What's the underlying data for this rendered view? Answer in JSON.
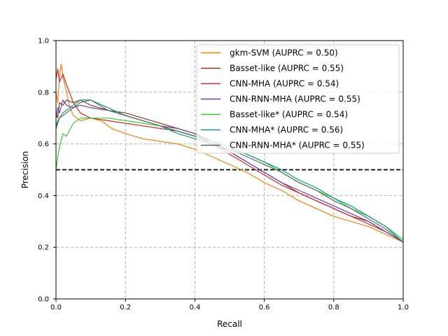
{
  "chart_data": {
    "type": "line",
    "title": "",
    "xlabel": "Recall",
    "ylabel": "Precision",
    "xlim": [
      0,
      1
    ],
    "ylim": [
      0,
      1
    ],
    "xticks": [
      "0.0",
      "0.2",
      "0.4",
      "0.6",
      "0.8",
      "1.0"
    ],
    "yticks": [
      "0.0",
      "0.2",
      "0.4",
      "0.6",
      "0.8",
      "1.0"
    ],
    "grid": true,
    "legend_position": "top-right",
    "baseline": {
      "y": 0.5,
      "style": "dashed",
      "color": "#000000"
    },
    "series": [
      {
        "name": "gkm-SVM (AUPRC = 0.50)",
        "color": "#ff7f0e",
        "points": [
          [
            0,
            0.8
          ],
          [
            0.005,
            0.76
          ],
          [
            0.01,
            0.86
          ],
          [
            0.015,
            0.91
          ],
          [
            0.02,
            0.86
          ],
          [
            0.03,
            0.8
          ],
          [
            0.04,
            0.74
          ],
          [
            0.05,
            0.71
          ],
          [
            0.07,
            0.69
          ],
          [
            0.1,
            0.7
          ],
          [
            0.13,
            0.69
          ],
          [
            0.16,
            0.66
          ],
          [
            0.2,
            0.64
          ],
          [
            0.25,
            0.62
          ],
          [
            0.3,
            0.61
          ],
          [
            0.35,
            0.6
          ],
          [
            0.4,
            0.58
          ],
          [
            0.45,
            0.55
          ],
          [
            0.5,
            0.52
          ],
          [
            0.55,
            0.49
          ],
          [
            0.6,
            0.45
          ],
          [
            0.65,
            0.42
          ],
          [
            0.7,
            0.38
          ],
          [
            0.75,
            0.35
          ],
          [
            0.8,
            0.32
          ],
          [
            0.85,
            0.3
          ],
          [
            0.9,
            0.28
          ],
          [
            0.95,
            0.25
          ],
          [
            1.0,
            0.22
          ]
        ]
      },
      {
        "name": "Basset-like (AUPRC = 0.55)",
        "color": "#8c3a1e",
        "points": [
          [
            0,
            0.72
          ],
          [
            0.005,
            0.7
          ],
          [
            0.01,
            0.76
          ],
          [
            0.02,
            0.75
          ],
          [
            0.03,
            0.77
          ],
          [
            0.05,
            0.76
          ],
          [
            0.07,
            0.77
          ],
          [
            0.1,
            0.75
          ],
          [
            0.15,
            0.73
          ],
          [
            0.2,
            0.72
          ],
          [
            0.25,
            0.7
          ],
          [
            0.3,
            0.68
          ],
          [
            0.35,
            0.66
          ],
          [
            0.4,
            0.64
          ],
          [
            0.45,
            0.61
          ],
          [
            0.5,
            0.57
          ],
          [
            0.55,
            0.53
          ],
          [
            0.6,
            0.49
          ],
          [
            0.65,
            0.45
          ],
          [
            0.7,
            0.41
          ],
          [
            0.75,
            0.38
          ],
          [
            0.8,
            0.35
          ],
          [
            0.85,
            0.32
          ],
          [
            0.9,
            0.3
          ],
          [
            0.95,
            0.26
          ],
          [
            1.0,
            0.22
          ]
        ]
      },
      {
        "name": "CNN-MHA (AUPRC = 0.54)",
        "color": "#d62728",
        "points": [
          [
            0,
            0.85
          ],
          [
            0.005,
            0.89
          ],
          [
            0.01,
            0.84
          ],
          [
            0.02,
            0.87
          ],
          [
            0.03,
            0.83
          ],
          [
            0.05,
            0.76
          ],
          [
            0.07,
            0.72
          ],
          [
            0.1,
            0.7
          ],
          [
            0.15,
            0.69
          ],
          [
            0.2,
            0.68
          ],
          [
            0.25,
            0.67
          ],
          [
            0.3,
            0.66
          ],
          [
            0.35,
            0.65
          ],
          [
            0.4,
            0.63
          ],
          [
            0.45,
            0.6
          ],
          [
            0.5,
            0.56
          ],
          [
            0.55,
            0.52
          ],
          [
            0.6,
            0.48
          ],
          [
            0.65,
            0.44
          ],
          [
            0.7,
            0.41
          ],
          [
            0.75,
            0.38
          ],
          [
            0.8,
            0.35
          ],
          [
            0.85,
            0.32
          ],
          [
            0.9,
            0.29
          ],
          [
            0.95,
            0.26
          ],
          [
            1.0,
            0.22
          ]
        ]
      },
      {
        "name": "CNN-RNN-MHA (AUPRC = 0.55)",
        "color": "#6a3fb5",
        "points": [
          [
            0,
            0.7
          ],
          [
            0.005,
            0.74
          ],
          [
            0.01,
            0.72
          ],
          [
            0.02,
            0.77
          ],
          [
            0.03,
            0.75
          ],
          [
            0.05,
            0.74
          ],
          [
            0.07,
            0.75
          ],
          [
            0.1,
            0.74
          ],
          [
            0.15,
            0.73
          ],
          [
            0.2,
            0.71
          ],
          [
            0.25,
            0.69
          ],
          [
            0.3,
            0.67
          ],
          [
            0.35,
            0.66
          ],
          [
            0.4,
            0.64
          ],
          [
            0.45,
            0.6
          ],
          [
            0.5,
            0.57
          ],
          [
            0.55,
            0.53
          ],
          [
            0.6,
            0.49
          ],
          [
            0.65,
            0.45
          ],
          [
            0.7,
            0.42
          ],
          [
            0.75,
            0.39
          ],
          [
            0.8,
            0.36
          ],
          [
            0.85,
            0.33
          ],
          [
            0.9,
            0.3
          ],
          [
            0.95,
            0.26
          ],
          [
            1.0,
            0.22
          ]
        ]
      },
      {
        "name": "Basset-like* (AUPRC = 0.54)",
        "color": "#33cc33",
        "points": [
          [
            0,
            0.5
          ],
          [
            0.005,
            0.55
          ],
          [
            0.01,
            0.59
          ],
          [
            0.02,
            0.64
          ],
          [
            0.03,
            0.63
          ],
          [
            0.05,
            0.68
          ],
          [
            0.07,
            0.7
          ],
          [
            0.1,
            0.7
          ],
          [
            0.15,
            0.7
          ],
          [
            0.2,
            0.69
          ],
          [
            0.25,
            0.68
          ],
          [
            0.3,
            0.67
          ],
          [
            0.35,
            0.65
          ],
          [
            0.4,
            0.63
          ],
          [
            0.45,
            0.61
          ],
          [
            0.5,
            0.59
          ],
          [
            0.55,
            0.56
          ],
          [
            0.6,
            0.53
          ],
          [
            0.65,
            0.49
          ],
          [
            0.7,
            0.45
          ],
          [
            0.75,
            0.42
          ],
          [
            0.8,
            0.39
          ],
          [
            0.85,
            0.35
          ],
          [
            0.9,
            0.32
          ],
          [
            0.95,
            0.28
          ],
          [
            1.0,
            0.23
          ]
        ]
      },
      {
        "name": "CNN-MHA* (AUPRC = 0.56)",
        "color": "#11998e",
        "points": [
          [
            0,
            0.67
          ],
          [
            0.005,
            0.69
          ],
          [
            0.01,
            0.7
          ],
          [
            0.02,
            0.72
          ],
          [
            0.03,
            0.73
          ],
          [
            0.05,
            0.75
          ],
          [
            0.07,
            0.77
          ],
          [
            0.1,
            0.77
          ],
          [
            0.15,
            0.74
          ],
          [
            0.2,
            0.71
          ],
          [
            0.25,
            0.69
          ],
          [
            0.3,
            0.67
          ],
          [
            0.35,
            0.64
          ],
          [
            0.4,
            0.62
          ],
          [
            0.45,
            0.6
          ],
          [
            0.5,
            0.58
          ],
          [
            0.55,
            0.56
          ],
          [
            0.6,
            0.53
          ],
          [
            0.65,
            0.5
          ],
          [
            0.7,
            0.46
          ],
          [
            0.75,
            0.43
          ],
          [
            0.8,
            0.39
          ],
          [
            0.85,
            0.36
          ],
          [
            0.9,
            0.32
          ],
          [
            0.95,
            0.28
          ],
          [
            1.0,
            0.22
          ]
        ]
      },
      {
        "name": "CNN-RNN-MHA* (AUPRC = 0.55)",
        "color": "#55705a",
        "points": [
          [
            0,
            0.66
          ],
          [
            0.005,
            0.68
          ],
          [
            0.01,
            0.7
          ],
          [
            0.02,
            0.71
          ],
          [
            0.03,
            0.72
          ],
          [
            0.05,
            0.74
          ],
          [
            0.07,
            0.76
          ],
          [
            0.1,
            0.77
          ],
          [
            0.15,
            0.73
          ],
          [
            0.2,
            0.71
          ],
          [
            0.25,
            0.69
          ],
          [
            0.3,
            0.67
          ],
          [
            0.35,
            0.65
          ],
          [
            0.4,
            0.63
          ],
          [
            0.45,
            0.6
          ],
          [
            0.5,
            0.58
          ],
          [
            0.55,
            0.55
          ],
          [
            0.6,
            0.52
          ],
          [
            0.65,
            0.49
          ],
          [
            0.7,
            0.45
          ],
          [
            0.75,
            0.42
          ],
          [
            0.8,
            0.38
          ],
          [
            0.85,
            0.35
          ],
          [
            0.9,
            0.31
          ],
          [
            0.95,
            0.27
          ],
          [
            1.0,
            0.22
          ]
        ]
      }
    ]
  }
}
